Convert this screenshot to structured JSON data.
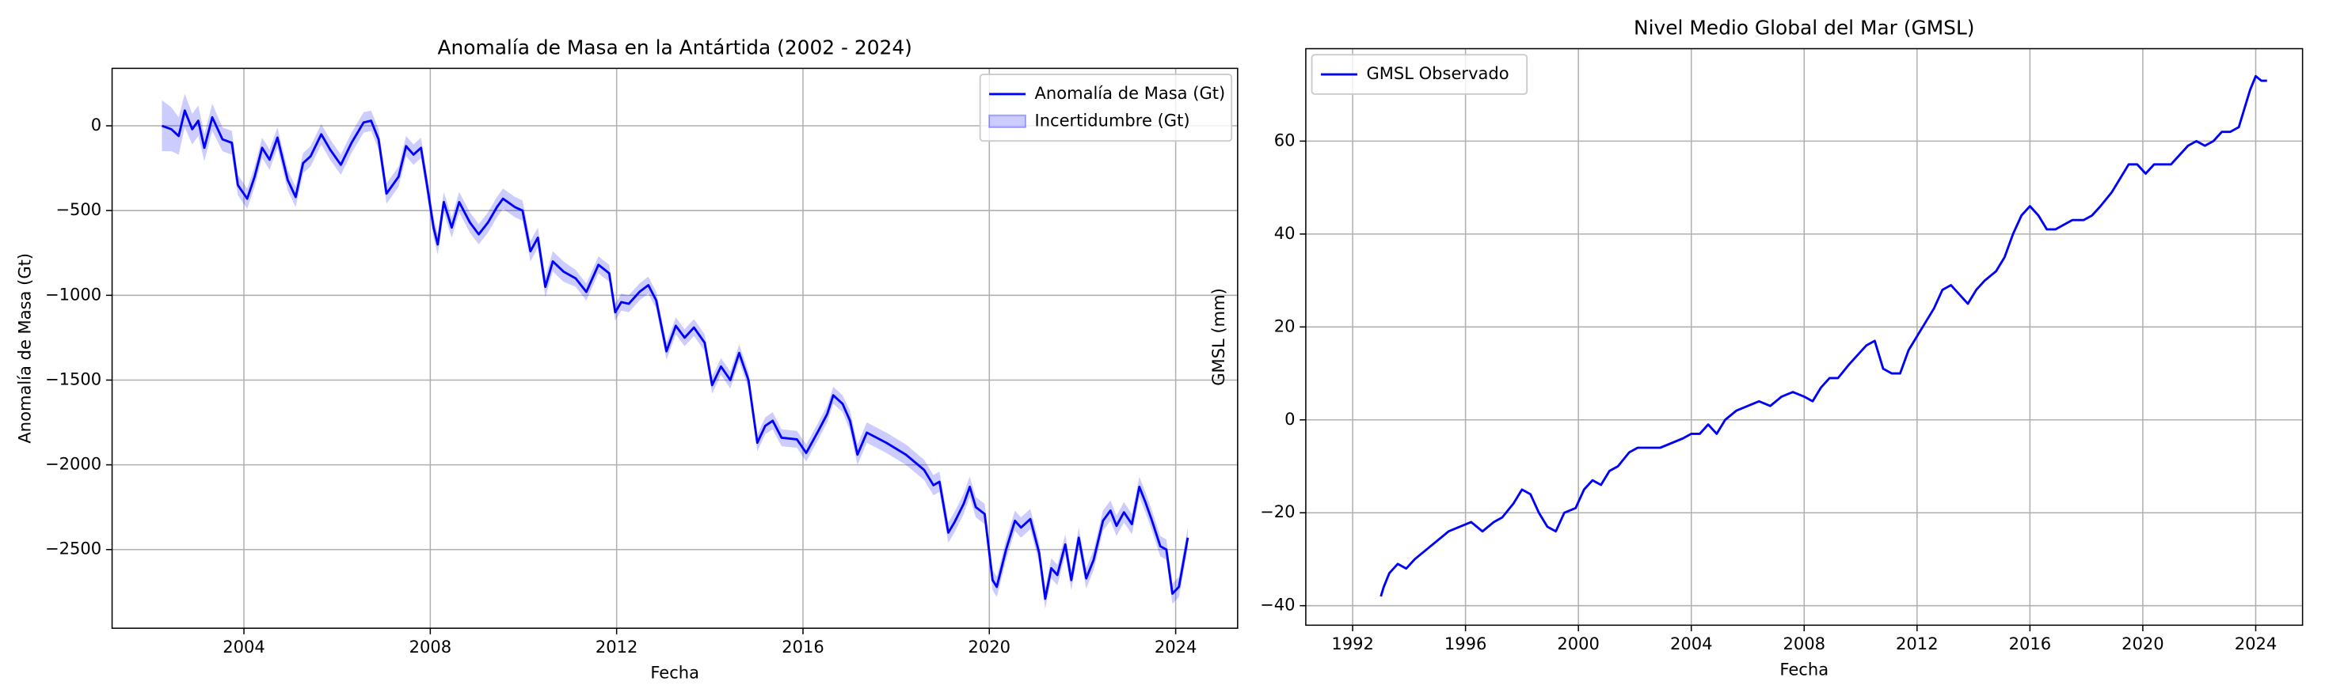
{
  "chart_data": [
    {
      "type": "line",
      "title": "Anomalía de Masa en la Antártida (2002 - 2024)",
      "xlabel": "Fecha",
      "ylabel": "Anomalía de Masa (Gt)",
      "x": [
        2002.24,
        2002.44,
        2002.6,
        2002.73,
        2002.89,
        2003.02,
        2003.15,
        2003.32,
        2003.54,
        2003.74,
        2003.87,
        2004.07,
        2004.23,
        2004.39,
        2004.55,
        2004.72,
        2004.94,
        2005.11,
        2005.27,
        2005.43,
        2005.66,
        2005.85,
        2006.08,
        2006.31,
        2006.57,
        2006.73,
        2006.89,
        2007.06,
        2007.32,
        2007.48,
        2007.64,
        2007.8,
        2007.93,
        2008.07,
        2008.16,
        2008.29,
        2008.46,
        2008.62,
        2008.85,
        2009.04,
        2009.24,
        2009.43,
        2009.56,
        2009.82,
        2009.98,
        2010.15,
        2010.31,
        2010.47,
        2010.63,
        2010.86,
        2011.12,
        2011.35,
        2011.61,
        2011.84,
        2011.97,
        2012.1,
        2012.26,
        2012.49,
        2012.68,
        2012.85,
        2013.07,
        2013.27,
        2013.46,
        2013.66,
        2013.89,
        2014.05,
        2014.24,
        2014.44,
        2014.63,
        2014.83,
        2015.02,
        2015.19,
        2015.35,
        2015.54,
        2015.87,
        2016.07,
        2016.33,
        2016.52,
        2016.65,
        2016.85,
        2017.01,
        2017.17,
        2017.37,
        2017.79,
        2018.21,
        2018.6,
        2018.8,
        2018.93,
        2019.12,
        2019.25,
        2019.45,
        2019.58,
        2019.71,
        2019.9,
        2020.07,
        2020.16,
        2020.36,
        2020.55,
        2020.68,
        2020.88,
        2021.07,
        2021.2,
        2021.33,
        2021.46,
        2021.63,
        2021.76,
        2021.92,
        2022.08,
        2022.24,
        2022.44,
        2022.6,
        2022.73,
        2022.89,
        2023.06,
        2023.22,
        2023.35,
        2023.48,
        2023.67,
        2023.8,
        2023.93,
        2024.07,
        2024.26
      ],
      "series": [
        {
          "name": "Anomalía de Masa (Gt)",
          "color": "#0000ff",
          "type": "line",
          "values": [
            0,
            -20,
            -60,
            90,
            -20,
            30,
            -130,
            50,
            -80,
            -100,
            -350,
            -430,
            -300,
            -130,
            -200,
            -70,
            -320,
            -420,
            -220,
            -180,
            -50,
            -140,
            -230,
            -100,
            20,
            30,
            -80,
            -400,
            -300,
            -120,
            -170,
            -130,
            -350,
            -600,
            -700,
            -450,
            -600,
            -450,
            -570,
            -640,
            -570,
            -480,
            -430,
            -480,
            -500,
            -740,
            -660,
            -950,
            -800,
            -860,
            -900,
            -980,
            -820,
            -870,
            -1100,
            -1040,
            -1050,
            -980,
            -940,
            -1030,
            -1330,
            -1180,
            -1250,
            -1190,
            -1280,
            -1530,
            -1420,
            -1500,
            -1340,
            -1500,
            -1870,
            -1770,
            -1740,
            -1840,
            -1850,
            -1930,
            -1800,
            -1700,
            -1590,
            -1640,
            -1740,
            -1940,
            -1810,
            -1870,
            -1940,
            -2030,
            -2120,
            -2100,
            -2400,
            -2340,
            -2230,
            -2130,
            -2250,
            -2290,
            -2680,
            -2720,
            -2500,
            -2330,
            -2370,
            -2320,
            -2520,
            -2790,
            -2610,
            -2650,
            -2470,
            -2680,
            -2430,
            -2670,
            -2560,
            -2330,
            -2270,
            -2360,
            -2280,
            -2350,
            -2130,
            -2220,
            -2320,
            -2480,
            -2500,
            -2760,
            -2720,
            -2430
          ]
        },
        {
          "name": "Incertidumbre (Gt)",
          "color": "#0000ff",
          "type": "band",
          "values": [
            150,
            130,
            110,
            100,
            90,
            90,
            80,
            80,
            70,
            70,
            60,
            60,
            60,
            60,
            60,
            60,
            60,
            60,
            60,
            60,
            60,
            60,
            60,
            60,
            60,
            60,
            60,
            60,
            60,
            60,
            60,
            60,
            60,
            60,
            60,
            60,
            60,
            60,
            60,
            60,
            60,
            60,
            60,
            60,
            60,
            60,
            60,
            60,
            60,
            60,
            50,
            50,
            50,
            50,
            50,
            50,
            50,
            50,
            50,
            50,
            50,
            50,
            50,
            50,
            50,
            50,
            50,
            50,
            50,
            50,
            50,
            50,
            50,
            50,
            50,
            50,
            50,
            50,
            50,
            50,
            60,
            60,
            60,
            60,
            60,
            60,
            60,
            60,
            60,
            60,
            60,
            60,
            60,
            60,
            60,
            60,
            60,
            60,
            60,
            60,
            60,
            60,
            60,
            60,
            60,
            60,
            60,
            60,
            60,
            60,
            60,
            60,
            60,
            60,
            60,
            60,
            60,
            60,
            60,
            60,
            60,
            60
          ]
        }
      ],
      "xlim": [
        2001.17,
        2025.33
      ],
      "xticks": [
        2004,
        2008,
        2012,
        2016,
        2020,
        2024
      ],
      "ylim": [
        -2964,
        339
      ],
      "yticks": [
        0,
        {
          "value": -500,
          "label": "−500"
        },
        {
          "value": -1000,
          "label": "−1000"
        },
        {
          "value": -1500,
          "label": "−1500"
        },
        {
          "value": -2000,
          "label": "−2000"
        },
        {
          "value": -2500,
          "label": "−2500"
        }
      ],
      "grid": true,
      "legend": "upper right"
    },
    {
      "type": "line",
      "title": "Nivel Medio Global del Mar (GMSL)",
      "xlabel": "Fecha",
      "ylabel": "GMSL (mm)",
      "x": [
        1993.0,
        1993.1,
        1993.3,
        1993.6,
        1993.9,
        1994.2,
        1994.6,
        1995.0,
        1995.4,
        1995.8,
        1996.2,
        1996.6,
        1997.0,
        1997.3,
        1997.7,
        1998.0,
        1998.3,
        1998.6,
        1998.9,
        1999.2,
        1999.5,
        1999.9,
        2000.2,
        2000.5,
        2000.8,
        2001.1,
        2001.4,
        2001.8,
        2002.1,
        2002.5,
        2002.9,
        2003.3,
        2003.7,
        2004.0,
        2004.3,
        2004.6,
        2004.9,
        2005.2,
        2005.6,
        2006.0,
        2006.4,
        2006.8,
        2007.2,
        2007.6,
        2008.0,
        2008.3,
        2008.6,
        2008.9,
        2009.2,
        2009.6,
        2009.9,
        2010.2,
        2010.5,
        2010.8,
        2011.1,
        2011.4,
        2011.7,
        2012.0,
        2012.3,
        2012.6,
        2012.9,
        2013.2,
        2013.5,
        2013.8,
        2014.1,
        2014.4,
        2014.8,
        2015.1,
        2015.4,
        2015.7,
        2016.0,
        2016.3,
        2016.6,
        2016.9,
        2017.2,
        2017.5,
        2017.9,
        2018.2,
        2018.5,
        2018.9,
        2019.2,
        2019.5,
        2019.8,
        2020.1,
        2020.4,
        2020.7,
        2021.0,
        2021.3,
        2021.6,
        2021.9,
        2022.2,
        2022.5,
        2022.8,
        2023.1,
        2023.4,
        2023.6,
        2023.8,
        2024.0,
        2024.2,
        2024.4
      ],
      "series": [
        {
          "name": "GMSL Observado",
          "color": "#0000ff",
          "type": "line",
          "values": [
            -38,
            -36,
            -33,
            -31,
            -32,
            -30,
            -28,
            -26,
            -24,
            -23,
            -22,
            -24,
            -22,
            -21,
            -18,
            -15,
            -16,
            -20,
            -23,
            -24,
            -20,
            -19,
            -15,
            -13,
            -14,
            -11,
            -10,
            -7,
            -6,
            -6,
            -6,
            -5,
            -4,
            -3,
            -3,
            -1,
            -3,
            0,
            2,
            3,
            4,
            3,
            5,
            6,
            5,
            4,
            7,
            9,
            9,
            12,
            14,
            16,
            17,
            11,
            10,
            10,
            15,
            18,
            21,
            24,
            28,
            29,
            27,
            25,
            28,
            30,
            32,
            35,
            40,
            44,
            46,
            44,
            41,
            41,
            42,
            43,
            43,
            44,
            46,
            49,
            52,
            55,
            55,
            53,
            55,
            55,
            55,
            57,
            59,
            60,
            59,
            60,
            62,
            62,
            63,
            67,
            71,
            74,
            73,
            73
          ]
        }
      ],
      "xlim": [
        1990.34,
        2025.66
      ],
      "xticks": [
        1992,
        1996,
        2000,
        2004,
        2008,
        2012,
        2016,
        2020,
        2024
      ],
      "ylim": [
        -44.2,
        79.9
      ],
      "yticks": [
        60,
        40,
        20,
        0,
        {
          "value": -20,
          "label": "−20"
        },
        {
          "value": -40,
          "label": "−40"
        }
      ],
      "grid": true,
      "legend": "upper left"
    }
  ]
}
